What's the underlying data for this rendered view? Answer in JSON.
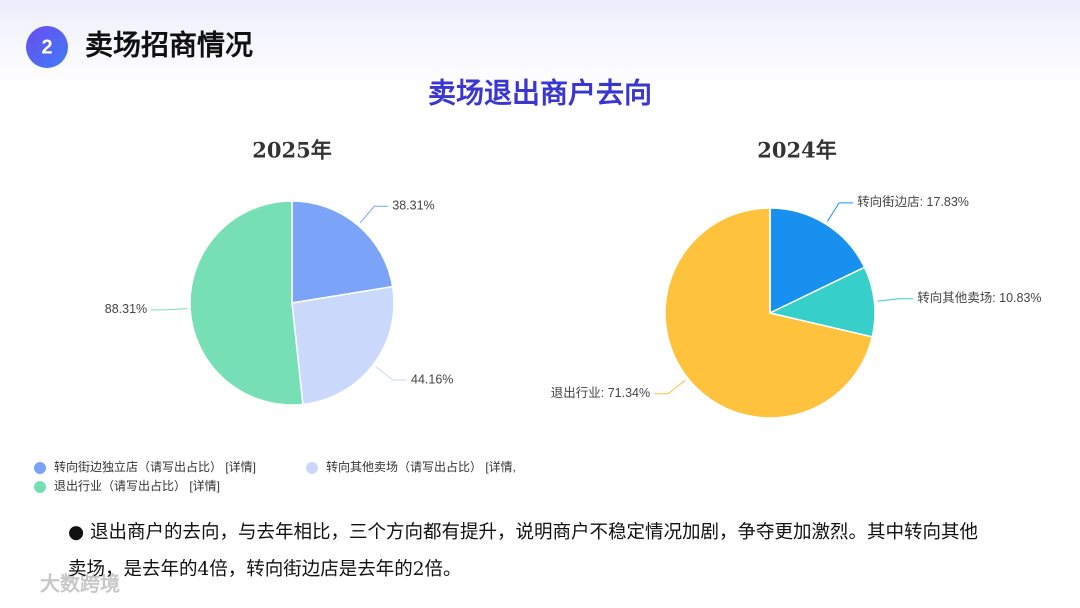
{
  "header": {
    "number": "2",
    "title": "卖场招商情况"
  },
  "heading": "卖场退出商户去向",
  "chart_data": [
    {
      "type": "pie",
      "title": "2025年",
      "categories": [
        "转向街边独立店（请写出占比） [详情]",
        "转向其他卖场（请写出占比） [详情,",
        "退出行业（请写出占比） [详情]"
      ],
      "values": [
        38.31,
        44.16,
        88.31
      ],
      "value_labels": [
        "38.31%",
        "44.16%",
        "88.31%"
      ],
      "colors": [
        "#7ba3f7",
        "#c9d8fb",
        "#76dfb5"
      ],
      "legend": "bottom-left"
    },
    {
      "type": "pie",
      "title": "2024年",
      "values": [
        17.83,
        10.83,
        71.34
      ],
      "value_labels": [
        "转向街边店: 17.83%",
        "转向其他卖场: 10.83%",
        "退出行业: 71.34%"
      ],
      "colors": [
        "#1890f0",
        "#36cfc9",
        "#ffc23d"
      ]
    }
  ],
  "paragraph": "● 退出商户的去向，与去年相比，三个方向都有提升，说明商户不稳定情况加剧，争夺更加激烈。其中转向其他卖场，是去年的4倍，转向街边店是去年的2倍。",
  "watermark": "大数跨境"
}
